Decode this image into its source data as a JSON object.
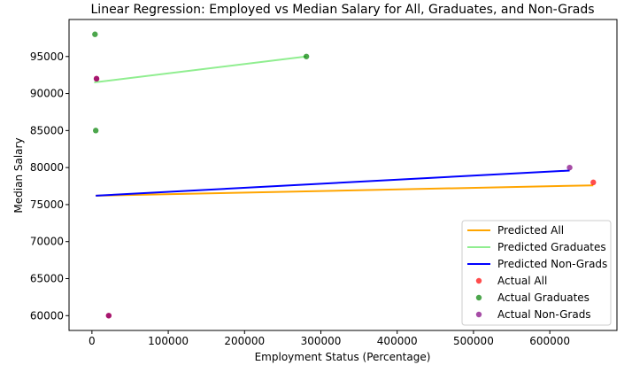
{
  "chart_data": {
    "type": "scatter",
    "title": "Linear Regression: Employed vs Median Salary for All, Graduates, and Non-Grads",
    "xlabel": "Employment Status (Percentage)",
    "ylabel": "Median Salary",
    "xlim": [
      -30000,
      688000
    ],
    "ylim": [
      58000,
      100000
    ],
    "x_ticks": [
      0,
      100000,
      200000,
      300000,
      400000,
      500000,
      600000
    ],
    "x_tick_labels": [
      "0",
      "100000",
      "200000",
      "300000",
      "400000",
      "500000",
      "600000"
    ],
    "y_ticks": [
      60000,
      65000,
      70000,
      75000,
      80000,
      85000,
      90000,
      95000
    ],
    "y_tick_labels": [
      "60000",
      "65000",
      "70000",
      "75000",
      "80000",
      "85000",
      "90000",
      "95000"
    ],
    "grid": false,
    "legend_position": "lower-right",
    "lines": [
      {
        "name": "Predicted All",
        "color": "#ffa500",
        "points": [
          [
            5000,
            76200
          ],
          [
            657000,
            77600
          ]
        ]
      },
      {
        "name": "Predicted Graduates",
        "color": "#90ee90",
        "points": [
          [
            3000,
            91500
          ],
          [
            281000,
            95000
          ]
        ]
      },
      {
        "name": "Predicted Non-Grads",
        "color": "#0000ff",
        "points": [
          [
            5000,
            76200
          ],
          [
            626000,
            79600
          ]
        ]
      }
    ],
    "scatter": [
      {
        "name": "Actual All",
        "color": "#ff0000",
        "points": [
          [
            657000,
            78000
          ],
          [
            6000,
            92000
          ],
          [
            22000,
            60000
          ]
        ]
      },
      {
        "name": "Actual Graduates",
        "color": "#008000",
        "points": [
          [
            4000,
            98000
          ],
          [
            5000,
            85000
          ],
          [
            281000,
            95000
          ]
        ]
      },
      {
        "name": "Actual Non-Grads",
        "color": "#800080",
        "points": [
          [
            626000,
            80000
          ],
          [
            6000,
            92000
          ],
          [
            22000,
            60000
          ]
        ]
      }
    ]
  }
}
